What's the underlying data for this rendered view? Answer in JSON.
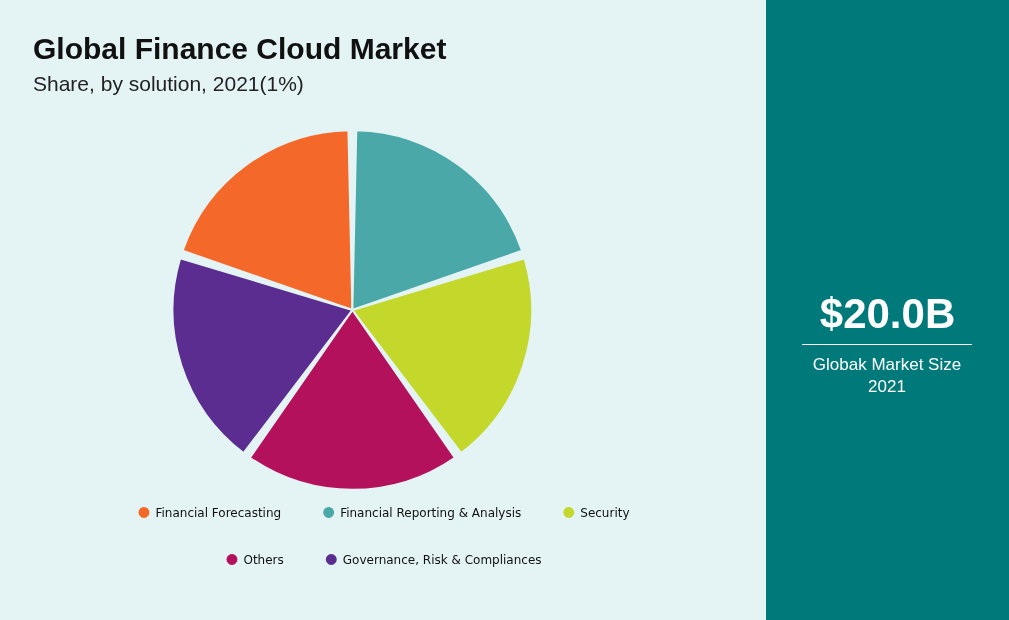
{
  "chart_data": {
    "type": "pie",
    "title": "Global Finance Cloud Market",
    "subtitle": "Share, by solution, 2021(1%)",
    "categories": [
      "Financial Forecasting",
      "Financial Reporting & Analysis",
      "Security",
      "Others",
      "Governance, Risk & Compliances"
    ],
    "values": [
      20,
      20,
      20,
      20,
      20
    ],
    "colors": [
      "#f4692a",
      "#4aa8a8",
      "#c3d82a",
      "#b3115c",
      "#5b2d91"
    ],
    "legend": "bottom",
    "annotations": [
      "$20.0B",
      "Globak Market Size 2021"
    ]
  }
}
